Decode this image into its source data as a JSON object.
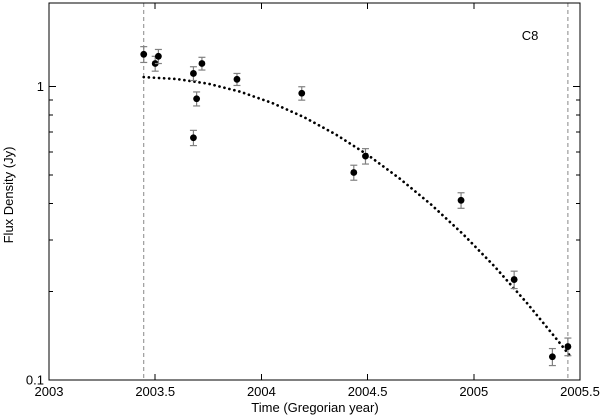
{
  "figure": {
    "annotation": "C8",
    "xlabel": "Time (Gregorian year)",
    "ylabel": "Flux Density (Jy)"
  },
  "chart_data": {
    "type": "scatter",
    "title": "",
    "annotation": "C8",
    "xlabel": "Time (Gregorian year)",
    "ylabel": "Flux Density (Jy)",
    "x_scale": "linear",
    "y_scale": "log",
    "xlim": [
      2003,
      2005.5
    ],
    "ylim": [
      0.1,
      1.93
    ],
    "grid": false,
    "legend": "none",
    "x_ticks": [
      {
        "v": 2003,
        "label": "2003"
      },
      {
        "v": 2003.5,
        "label": "2003.5"
      },
      {
        "v": 2004,
        "label": "2004"
      },
      {
        "v": 2004.5,
        "label": "2004.5"
      },
      {
        "v": 2005,
        "label": "2005"
      },
      {
        "v": 2005.5,
        "label": "2005.5"
      }
    ],
    "y_major_ticks": [
      {
        "v": 0.1,
        "label": "0.1"
      },
      {
        "v": 1,
        "label": "1"
      }
    ],
    "y_minor_ticks": [
      0.2,
      0.3,
      0.4,
      0.5,
      0.6,
      0.7,
      0.8,
      0.9
    ],
    "vlines": {
      "style": "dashed",
      "color": "#888888",
      "x": [
        2003.446,
        2005.443
      ]
    },
    "series": [
      {
        "name": "flux-measurements",
        "type": "scatter-errorbar",
        "marker": "filled-circle",
        "marker_color": "#000000",
        "errorbar_color": "#808080",
        "points": [
          {
            "t": 2003.446,
            "flux": 1.29,
            "err": 0.08
          },
          {
            "t": 2003.5,
            "flux": 1.2,
            "err": 0.07
          },
          {
            "t": 2003.515,
            "flux": 1.27,
            "err": 0.07
          },
          {
            "t": 2003.68,
            "flux": 1.11,
            "err": 0.06
          },
          {
            "t": 2003.72,
            "flux": 1.2,
            "err": 0.06
          },
          {
            "t": 2003.695,
            "flux": 0.91,
            "err": 0.05
          },
          {
            "t": 2003.68,
            "flux": 0.67,
            "err": 0.04
          },
          {
            "t": 2003.885,
            "flux": 1.06,
            "err": 0.05
          },
          {
            "t": 2004.19,
            "flux": 0.95,
            "err": 0.05
          },
          {
            "t": 2004.435,
            "flux": 0.51,
            "err": 0.03
          },
          {
            "t": 2004.49,
            "flux": 0.58,
            "err": 0.035
          },
          {
            "t": 2004.94,
            "flux": 0.41,
            "err": 0.025
          },
          {
            "t": 2005.19,
            "flux": 0.22,
            "err": 0.015
          },
          {
            "t": 2005.37,
            "flux": 0.12,
            "err": 0.008
          },
          {
            "t": 2005.443,
            "flux": 0.13,
            "err": 0.009
          }
        ]
      },
      {
        "name": "fit-curve",
        "type": "dotted-line",
        "color": "#000000",
        "points": [
          {
            "t": 2003.446,
            "flux": 1.079
          },
          {
            "t": 2003.6,
            "flux": 1.063
          },
          {
            "t": 2003.75,
            "flux": 1.024
          },
          {
            "t": 2003.9,
            "flux": 0.962
          },
          {
            "t": 2004.05,
            "flux": 0.881
          },
          {
            "t": 2004.2,
            "flux": 0.788
          },
          {
            "t": 2004.35,
            "flux": 0.688
          },
          {
            "t": 2004.5,
            "flux": 0.586
          },
          {
            "t": 2004.65,
            "flux": 0.487
          },
          {
            "t": 2004.8,
            "flux": 0.396
          },
          {
            "t": 2004.95,
            "flux": 0.314
          },
          {
            "t": 2005.1,
            "flux": 0.243
          },
          {
            "t": 2005.25,
            "flux": 0.183
          },
          {
            "t": 2005.4,
            "flux": 0.135
          },
          {
            "t": 2005.46,
            "flux": 0.119
          }
        ]
      }
    ],
    "colors": {
      "frame": "#000000",
      "marker": "#000000",
      "errorbar": "#808080",
      "vline": "#888888",
      "background": "#ffffff"
    }
  }
}
